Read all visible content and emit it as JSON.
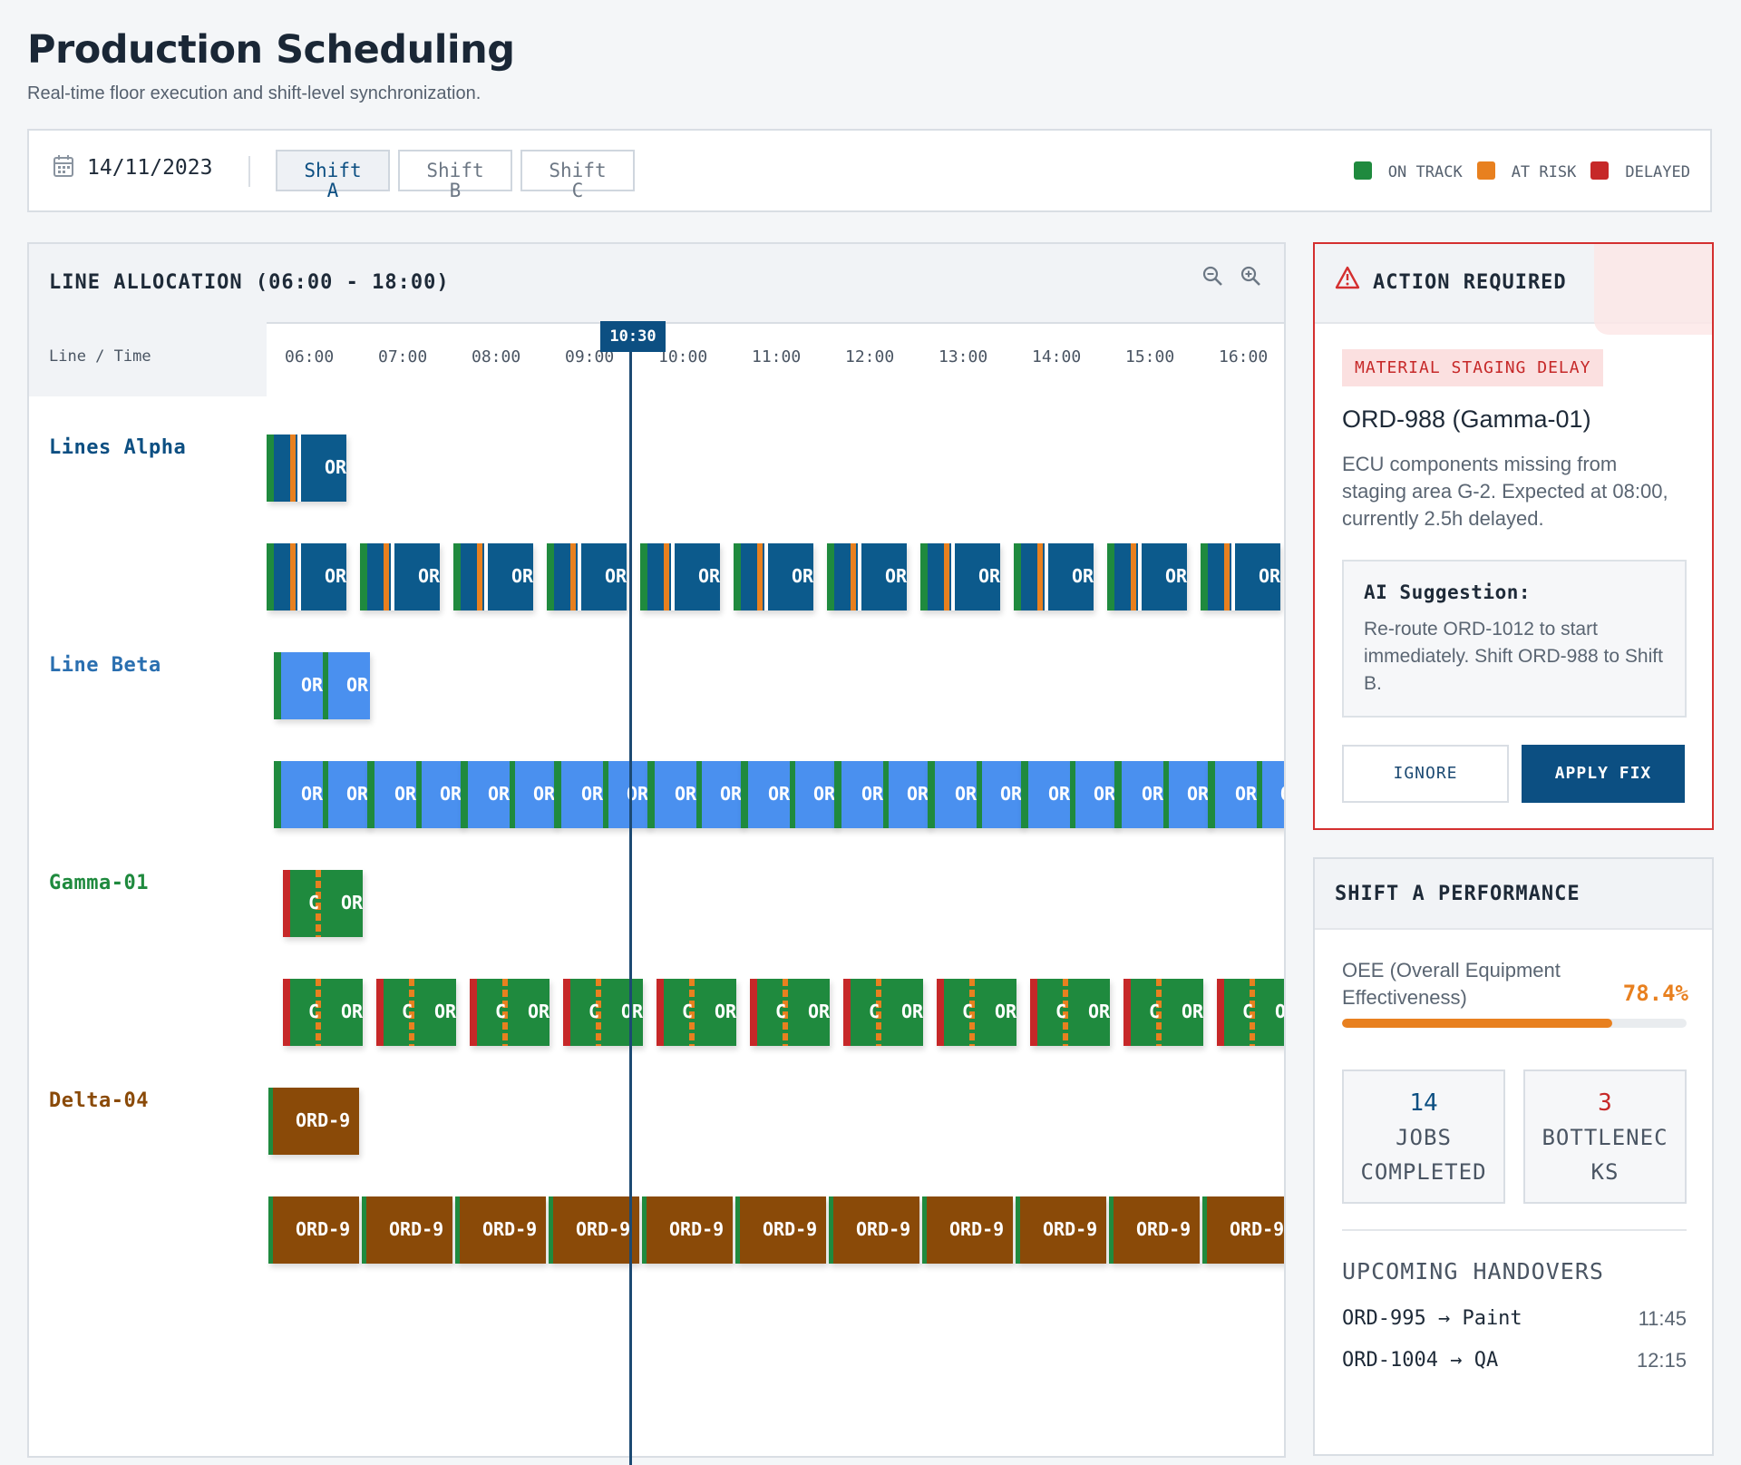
{
  "header": {
    "title": "Production Scheduling",
    "subtitle": "Real-time floor execution and shift-level synchronization."
  },
  "toolbar": {
    "date": "14/11/2023",
    "shifts": [
      {
        "label": "Shift",
        "code": "A",
        "active": true
      },
      {
        "label": "Shift",
        "code": "B",
        "active": false
      },
      {
        "label": "Shift",
        "code": "C",
        "active": false
      }
    ],
    "legend": [
      {
        "label": "ON TRACK",
        "color": "#1f8a3e"
      },
      {
        "label": "AT RISK",
        "color": "#e8801f"
      },
      {
        "label": "DELAYED",
        "color": "#c62828"
      }
    ]
  },
  "allocation": {
    "title": "LINE ALLOCATION (06:00 - 18:00)",
    "zoom_out_icon": "zoom-out-icon",
    "zoom_in_icon": "zoom-in-icon",
    "corner_label": "Line / Time",
    "time_ticks": [
      "06:00",
      "07:00",
      "08:00",
      "09:00",
      "10:00",
      "11:00",
      "12:00",
      "13:00",
      "14:00",
      "15:00",
      "16:00"
    ],
    "now_marker": "10:30",
    "lines": [
      {
        "name": "Lines Alpha",
        "color": "#0c5a8c",
        "bar_label": "OR"
      },
      {
        "name": "Line Beta",
        "color": "#2a6fb0",
        "bar_label": "OR"
      },
      {
        "name": "Gamma-01",
        "color": "#1f8a3e",
        "bar_label": "OR"
      },
      {
        "name": "Delta-04",
        "color": "#8a4a08",
        "bar_label": "ORD-9"
      }
    ]
  },
  "action": {
    "title": "ACTION REQUIRED",
    "tag": "MATERIAL STAGING DELAY",
    "order": "ORD-988 (Gamma-01)",
    "description": "ECU components missing from staging area G-2. Expected at 08:00, currently 2.5h delayed.",
    "ai_title": "AI Suggestion:",
    "ai_text": "Re-route ORD-1012 to start immediately. Shift ORD-988 to Shift B.",
    "ignore_label": "IGNORE",
    "apply_label": "APPLY FIX"
  },
  "performance": {
    "title": "SHIFT A PERFORMANCE",
    "oee_label": "OEE (Overall Equipment Effectiveness)",
    "oee_value": "78.4%",
    "oee_fraction": 0.784,
    "jobs_completed": "14",
    "jobs_completed_label": "JOBS COMPLETED",
    "bottlenecks": "3",
    "bottlenecks_label": "BOTTLENECKS",
    "handover_title": "UPCOMING HANDOVERS",
    "handovers": [
      {
        "order": "ORD-995 → Paint",
        "time": "11:45"
      },
      {
        "order": "ORD-1004 → QA",
        "time": "12:15"
      }
    ]
  }
}
